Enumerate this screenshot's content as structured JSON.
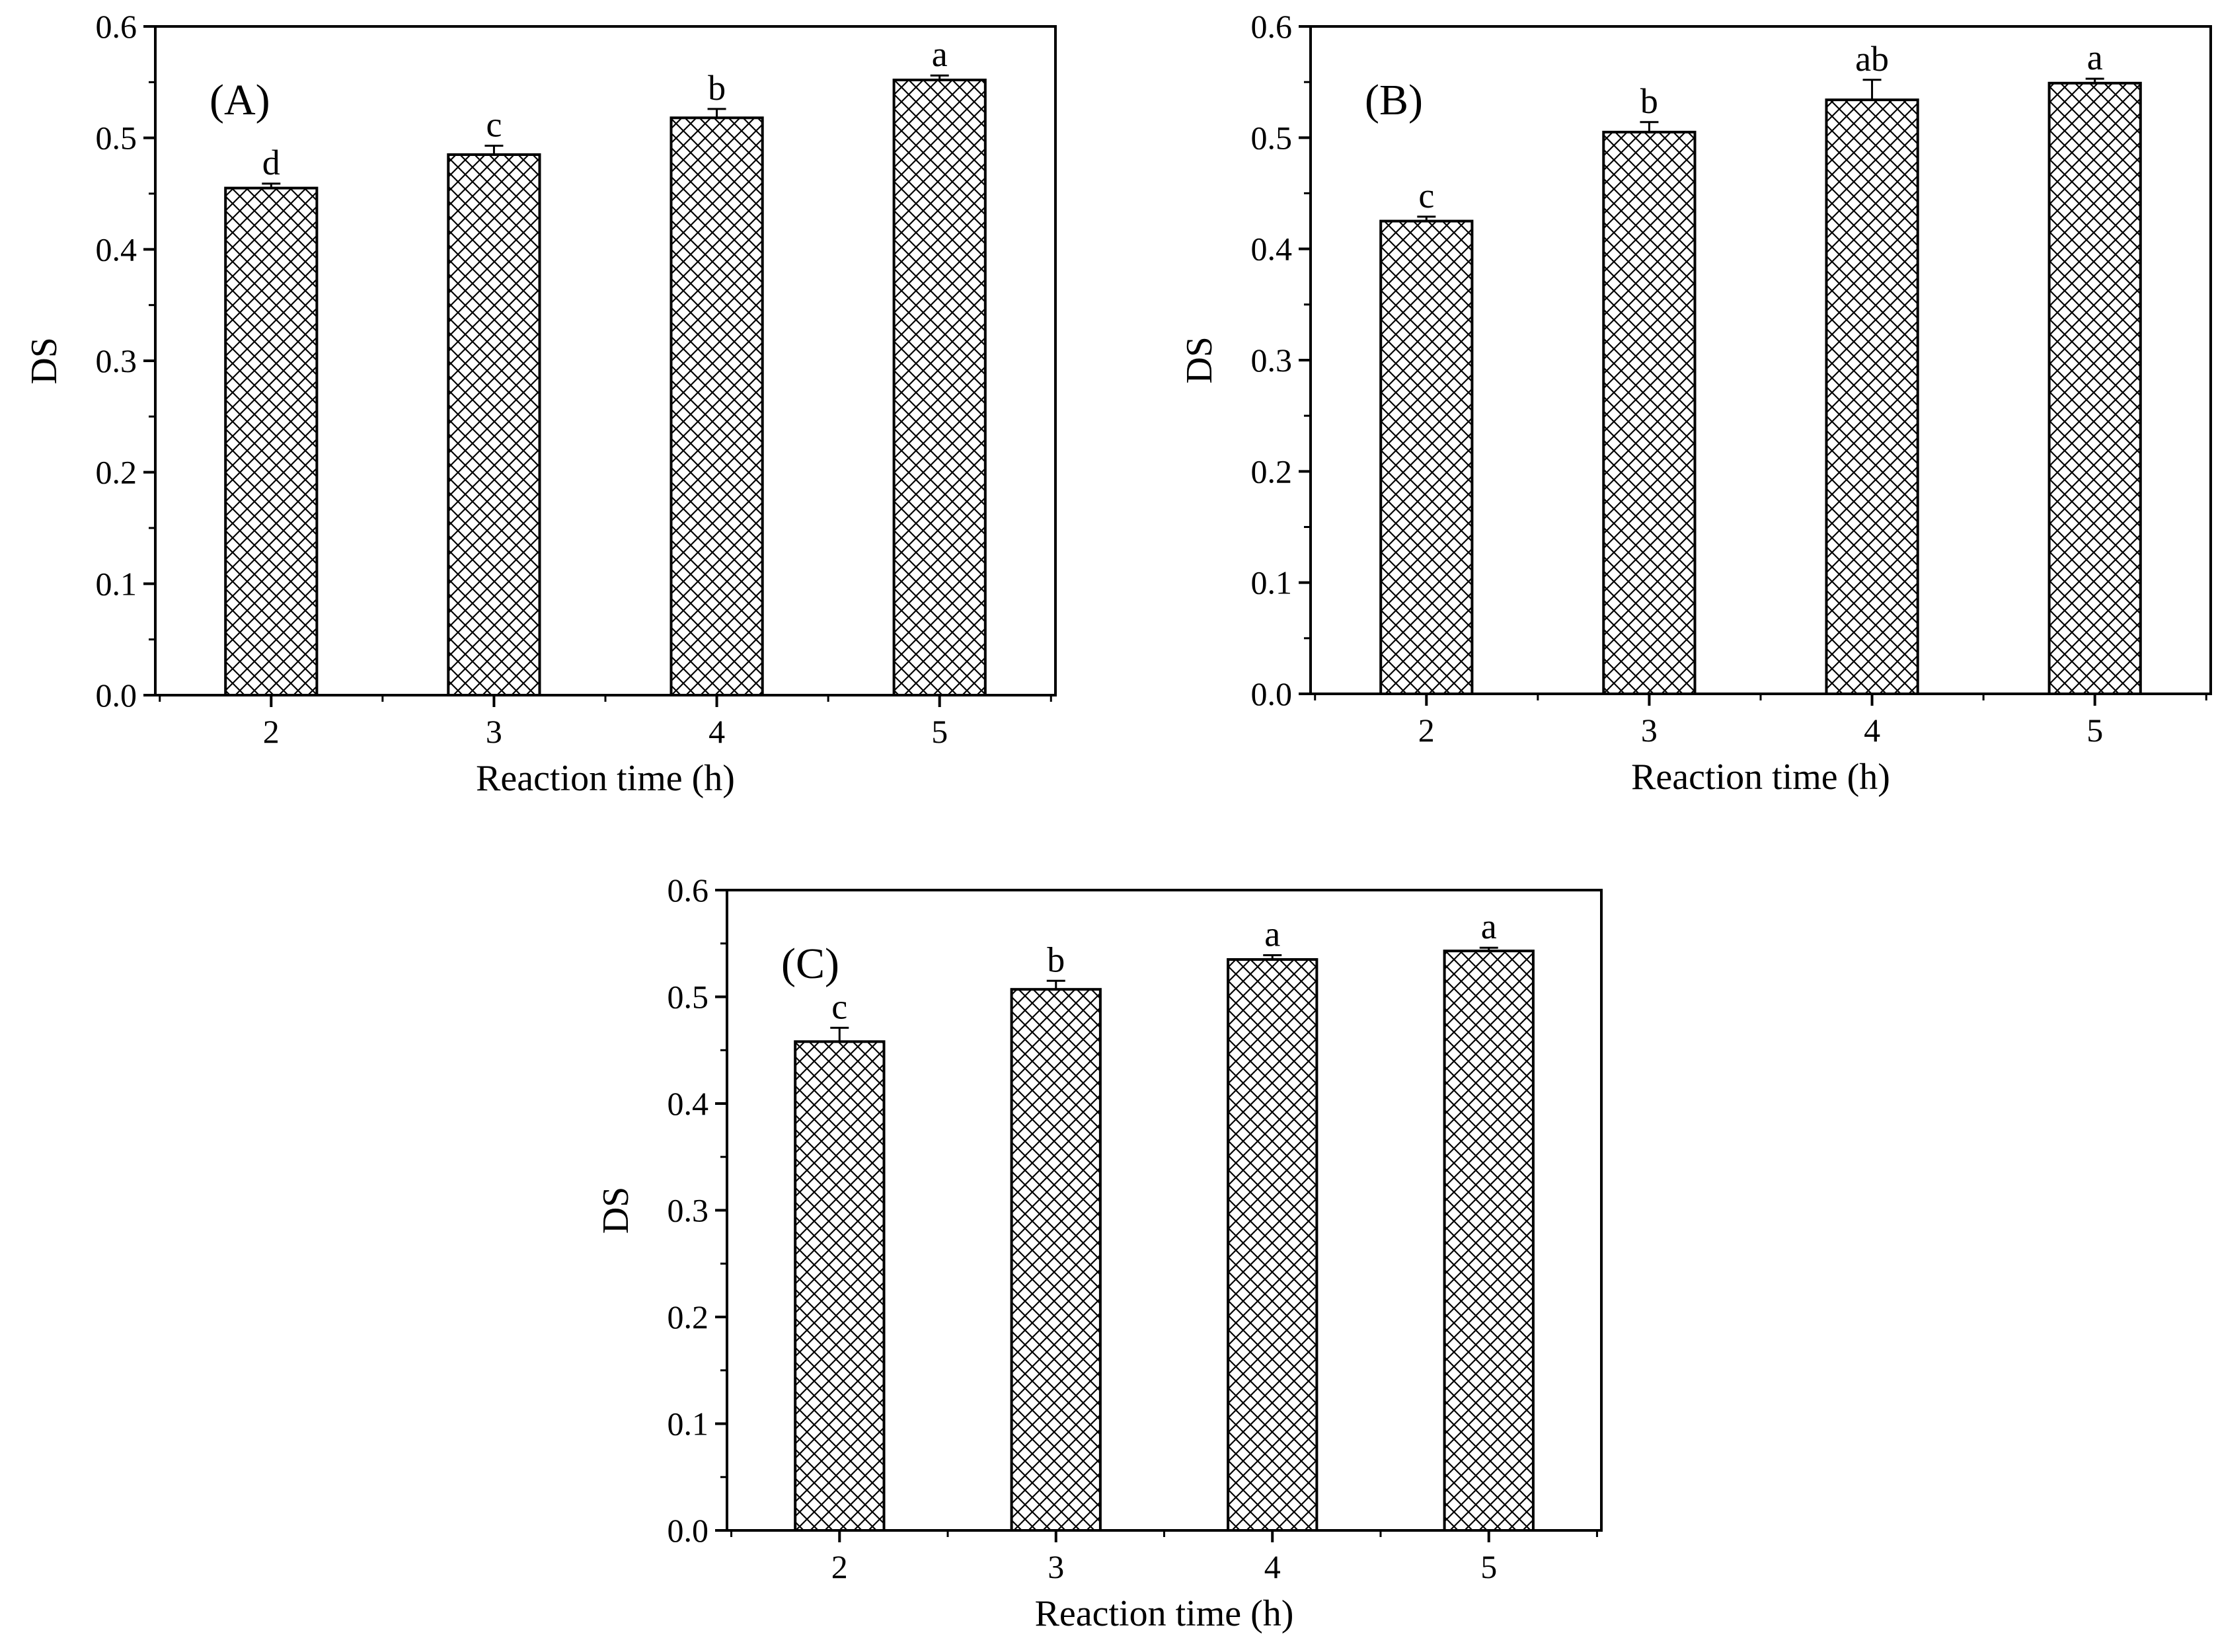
{
  "chart_data": [
    {
      "type": "bar",
      "panel_label": "(A)",
      "categories": [
        "2",
        "3",
        "4",
        "5"
      ],
      "values": [
        0.455,
        0.485,
        0.518,
        0.552
      ],
      "errors": [
        0.004,
        0.008,
        0.008,
        0.004
      ],
      "significance": [
        "d",
        "c",
        "b",
        "a"
      ],
      "xlabel": "Reaction time (h)",
      "ylabel": "DS",
      "ylim": [
        0,
        0.6
      ],
      "yticks": [
        "0.0",
        "0.1",
        "0.2",
        "0.3",
        "0.4",
        "0.5",
        "0.6"
      ],
      "pattern": "crosshatch",
      "grid": false
    },
    {
      "type": "bar",
      "panel_label": "(B)",
      "categories": [
        "2",
        "3",
        "4",
        "5"
      ],
      "values": [
        0.425,
        0.505,
        0.534,
        0.549
      ],
      "errors": [
        0.004,
        0.009,
        0.018,
        0.004
      ],
      "significance": [
        "c",
        "b",
        "ab",
        "a"
      ],
      "xlabel": "Reaction time (h)",
      "ylabel": "DS",
      "ylim": [
        0,
        0.6
      ],
      "yticks": [
        "0.0",
        "0.1",
        "0.2",
        "0.3",
        "0.4",
        "0.5",
        "0.6"
      ],
      "pattern": "crosshatch",
      "grid": false
    },
    {
      "type": "bar",
      "panel_label": "(C)",
      "categories": [
        "2",
        "3",
        "4",
        "5"
      ],
      "values": [
        0.458,
        0.507,
        0.535,
        0.543
      ],
      "errors": [
        0.013,
        0.008,
        0.004,
        0.003
      ],
      "significance": [
        "c",
        "b",
        "a",
        "a"
      ],
      "xlabel": "Reaction time (h)",
      "ylabel": "DS",
      "ylim": [
        0,
        0.6
      ],
      "yticks": [
        "0.0",
        "0.1",
        "0.2",
        "0.3",
        "0.4",
        "0.5",
        "0.6"
      ],
      "pattern": "crosshatch",
      "grid": false
    }
  ]
}
